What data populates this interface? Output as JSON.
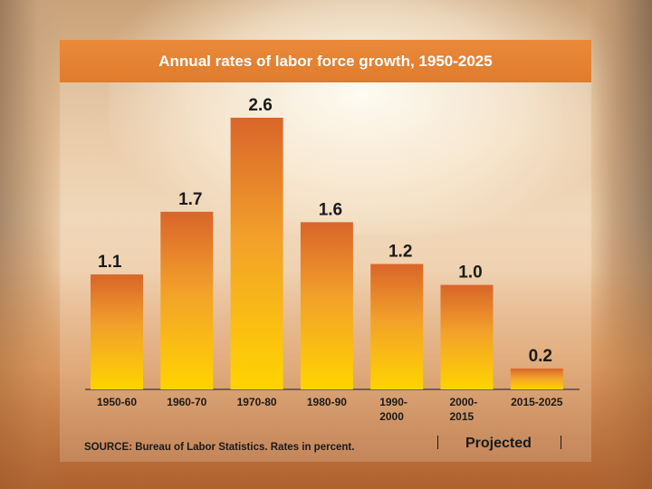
{
  "chart_data": {
    "type": "bar",
    "title": "Annual rates of labor force growth, 1950-2025",
    "categories": [
      [
        "1950-60"
      ],
      [
        "1960-70"
      ],
      [
        "1970-80"
      ],
      [
        "1980-90"
      ],
      [
        "1990-",
        "2000"
      ],
      [
        "2000-",
        "2015"
      ],
      [
        "2015-2025"
      ]
    ],
    "values": [
      1.1,
      1.7,
      2.6,
      1.6,
      1.2,
      1.0,
      0.2
    ],
    "value_labels": [
      "1.1",
      "1.7",
      "2.6",
      "1.6",
      "1.2",
      "1.0",
      "0.2"
    ],
    "ylim": [
      0,
      2.6
    ],
    "grid": false,
    "colors": {
      "bar_top": "#d9652a",
      "bar_bottom": "#ffd400",
      "title_banner": "#e98a3a"
    }
  },
  "source_note": "SOURCE: Bureau of Labor Statistics. Rates in percent.",
  "projected_label": "Projected"
}
